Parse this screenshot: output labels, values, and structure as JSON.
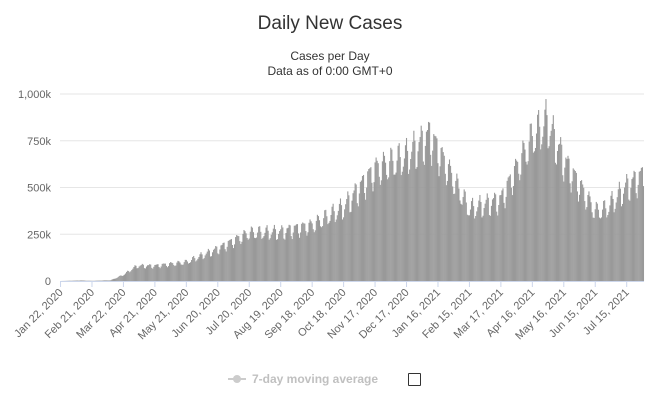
{
  "chart_data": {
    "type": "bar",
    "title": "Daily New Cases",
    "subtitle": [
      "Cases per Day",
      "Data as of 0:00 GMT+0"
    ],
    "ylabel": "",
    "xlabel": "",
    "ylim": [
      0,
      1000000
    ],
    "yticks": [
      {
        "value": 0,
        "label": "0"
      },
      {
        "value": 250000,
        "label": "250k"
      },
      {
        "value": 500000,
        "label": "500k"
      },
      {
        "value": 750000,
        "label": "750k"
      },
      {
        "value": 1000000,
        "label": "1,000k"
      }
    ],
    "xticks": [
      "Jan 22, 2020",
      "Feb 21, 2020",
      "Mar 22, 2020",
      "Apr 21, 2020",
      "May 21, 2020",
      "Jun 20, 2020",
      "Jul 20, 2020",
      "Aug 19, 2020",
      "Sep 18, 2020",
      "Oct 18, 2020",
      "Nov 17, 2020",
      "Dec 17, 2020",
      "Jan 16, 2021",
      "Feb 15, 2021",
      "Mar 17, 2021",
      "Apr 16, 2021",
      "May 16, 2021",
      "Jun 15, 2021",
      "Jul 15, 2021"
    ],
    "x_start": "Jan 22, 2020",
    "x_end": "Jul 31, 2021",
    "grid": true,
    "bar_color": "#999999",
    "anchors": [
      {
        "date": "Jan 22, 2020",
        "value": 0
      },
      {
        "date": "Feb 10, 2020",
        "value": 3000
      },
      {
        "date": "Feb 21, 2020",
        "value": 1000
      },
      {
        "date": "Mar 10, 2020",
        "value": 4000
      },
      {
        "date": "Mar 22, 2020",
        "value": 33000
      },
      {
        "date": "Apr 4, 2020",
        "value": 80000
      },
      {
        "date": "Apr 21, 2020",
        "value": 80000
      },
      {
        "date": "May 21, 2020",
        "value": 100000
      },
      {
        "date": "Jun 20, 2020",
        "value": 170000
      },
      {
        "date": "Jul 20, 2020",
        "value": 255000
      },
      {
        "date": "Aug 19, 2020",
        "value": 260000
      },
      {
        "date": "Sep 18, 2020",
        "value": 295000
      },
      {
        "date": "Oct 18, 2020",
        "value": 390000
      },
      {
        "date": "Nov 17, 2020",
        "value": 590000
      },
      {
        "date": "Dec 17, 2020",
        "value": 660000
      },
      {
        "date": "Jan 8, 2021",
        "value": 770000
      },
      {
        "date": "Jan 16, 2021",
        "value": 690000
      },
      {
        "date": "Feb 15, 2021",
        "value": 380000
      },
      {
        "date": "Mar 17, 2021",
        "value": 430000
      },
      {
        "date": "Apr 16, 2021",
        "value": 760000
      },
      {
        "date": "Apr 30, 2021",
        "value": 845000
      },
      {
        "date": "May 16, 2021",
        "value": 640000
      },
      {
        "date": "Jun 15, 2021",
        "value": 370000
      },
      {
        "date": "Jun 25, 2021",
        "value": 380000
      },
      {
        "date": "Jul 15, 2021",
        "value": 500000
      },
      {
        "date": "Jul 31, 2021",
        "value": 560000
      }
    ]
  },
  "legend": {
    "label": "7-day moving average",
    "checked": false
  },
  "colors": {
    "bar": "#999999",
    "grid": "#e6e6e6",
    "axis": "#ccd6eb",
    "text": "#333333",
    "legend_inactive": "#cccccc"
  }
}
